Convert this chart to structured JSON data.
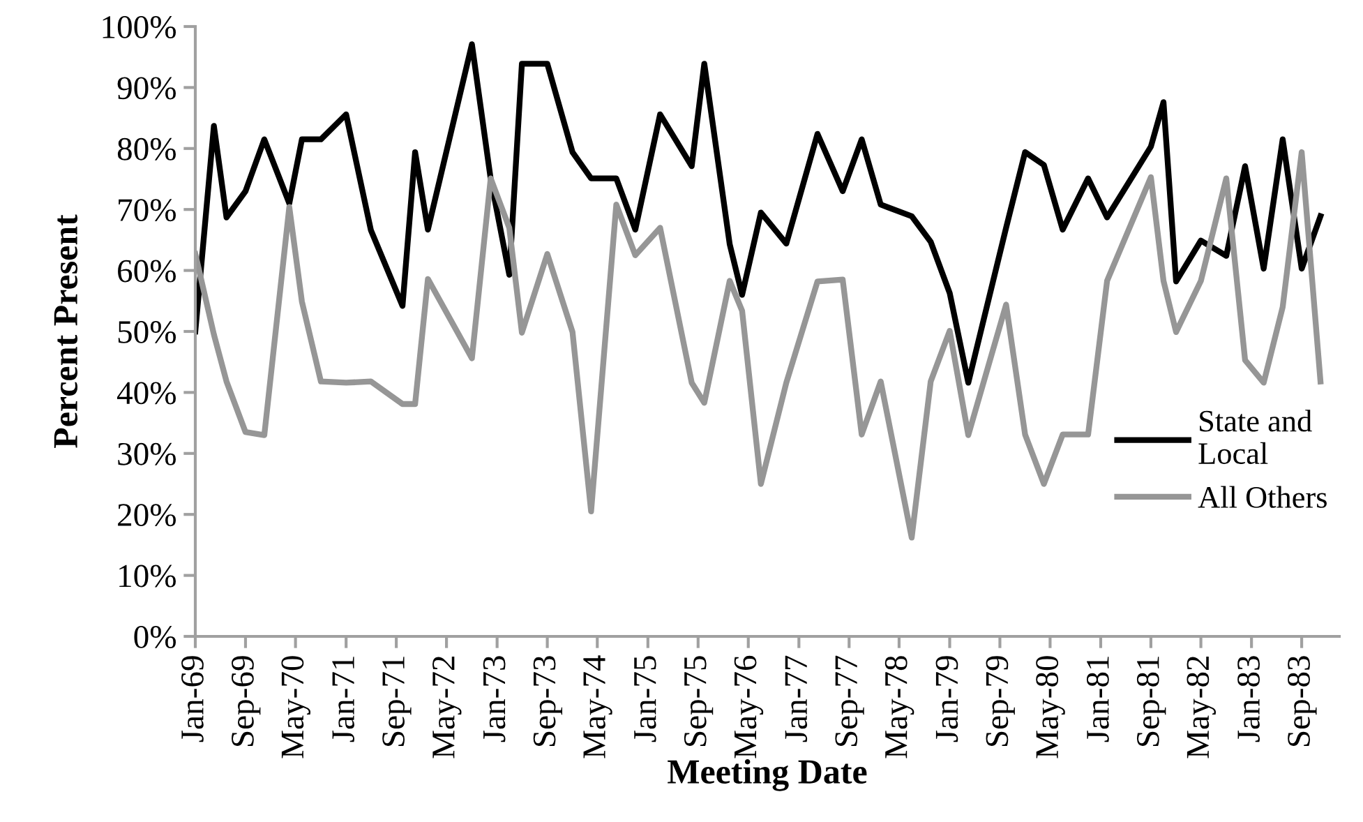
{
  "chart_data": {
    "type": "line",
    "xlabel": "Meeting Date",
    "ylabel": "Percent Present",
    "x": [
      "1969-01",
      "1969-04",
      "1969-06",
      "1969-09",
      "1969-12",
      "1970-04",
      "1970-06",
      "1970-09",
      "1971-01",
      "1971-05",
      "1971-10",
      "1971-12",
      "1972-02",
      "1972-09",
      "1972-12",
      "1973-03",
      "1973-05",
      "1973-09",
      "1974-01",
      "1974-04",
      "1974-08",
      "1974-11",
      "1975-03",
      "1975-08",
      "1975-10",
      "1976-02",
      "1976-04",
      "1976-07",
      "1976-11",
      "1977-04",
      "1977-08",
      "1977-11",
      "1978-02",
      "1978-07",
      "1978-10",
      "1979-01",
      "1979-04",
      "1979-10",
      "1980-01",
      "1980-04",
      "1980-07",
      "1980-11",
      "1981-02",
      "1981-09",
      "1981-11",
      "1982-01",
      "1982-05",
      "1982-09",
      "1982-12",
      "1983-03",
      "1983-06",
      "1983-09",
      "1983-12"
    ],
    "series": [
      {
        "name": "State and Local",
        "color": "#000000",
        "values": [
          50.0,
          83.7,
          68.7,
          73.0,
          81.5,
          71.0,
          81.5,
          81.5,
          85.6,
          66.6,
          54.2,
          79.4,
          66.7,
          97.1,
          75.0,
          59.3,
          93.9,
          93.9,
          79.4,
          75.1,
          75.1,
          66.7,
          85.6,
          77.1,
          93.9,
          64.3,
          56.0,
          69.5,
          64.4,
          82.4,
          73.0,
          81.5,
          70.8,
          68.9,
          64.7,
          56.3,
          41.6,
          67.0,
          79.4,
          77.3,
          66.7,
          75.1,
          68.7,
          80.3,
          87.6,
          58.2,
          64.9,
          62.4,
          77.1,
          60.3,
          81.5,
          60.3,
          68.9
        ]
      },
      {
        "name": "All Others",
        "color": "#969696",
        "values": [
          62.7,
          49.5,
          41.8,
          33.5,
          33.0,
          70.4,
          54.9,
          41.8,
          41.6,
          41.8,
          38.1,
          38.1,
          58.6,
          45.6,
          75.1,
          67.0,
          49.8,
          62.7,
          49.9,
          20.5,
          70.8,
          62.5,
          67.0,
          41.6,
          38.3,
          58.3,
          53.4,
          25.0,
          41.6,
          58.2,
          58.5,
          33.1,
          41.8,
          16.2,
          41.8,
          50.1,
          33.0,
          54.4,
          33.1,
          25.0,
          33.1,
          33.1,
          58.3,
          75.3,
          58.3,
          49.9,
          58.3,
          75.1,
          45.3,
          41.6,
          54.0,
          79.4,
          41.8
        ]
      }
    ],
    "xlim": [
      "1969-01",
      "1984-03"
    ],
    "xticks": [
      {
        "value": "1969-01",
        "label": "Jan-69"
      },
      {
        "value": "1969-09",
        "label": "Sep-69"
      },
      {
        "value": "1970-05",
        "label": "May-70"
      },
      {
        "value": "1971-01",
        "label": "Jan-71"
      },
      {
        "value": "1971-09",
        "label": "Sep-71"
      },
      {
        "value": "1972-05",
        "label": "May-72"
      },
      {
        "value": "1973-01",
        "label": "Jan-73"
      },
      {
        "value": "1973-09",
        "label": "Sep-73"
      },
      {
        "value": "1974-05",
        "label": "May-74"
      },
      {
        "value": "1975-01",
        "label": "Jan-75"
      },
      {
        "value": "1975-09",
        "label": "Sep-75"
      },
      {
        "value": "1976-05",
        "label": "May-76"
      },
      {
        "value": "1977-01",
        "label": "Jan-77"
      },
      {
        "value": "1977-09",
        "label": "Sep-77"
      },
      {
        "value": "1978-05",
        "label": "May-78"
      },
      {
        "value": "1979-01",
        "label": "Jan-79"
      },
      {
        "value": "1979-09",
        "label": "Sep-79"
      },
      {
        "value": "1980-05",
        "label": "May-80"
      },
      {
        "value": "1981-01",
        "label": "Jan-81"
      },
      {
        "value": "1981-09",
        "label": "Sep-81"
      },
      {
        "value": "1982-05",
        "label": "May-82"
      },
      {
        "value": "1983-01",
        "label": "Jan-83"
      },
      {
        "value": "1983-09",
        "label": "Sep-83"
      }
    ],
    "ylim": [
      0,
      100
    ],
    "yticks": [
      {
        "value": 0,
        "label": "0%"
      },
      {
        "value": 10,
        "label": "10%"
      },
      {
        "value": 20,
        "label": "20%"
      },
      {
        "value": 30,
        "label": "30%"
      },
      {
        "value": 40,
        "label": "40%"
      },
      {
        "value": 50,
        "label": "50%"
      },
      {
        "value": 60,
        "label": "60%"
      },
      {
        "value": 70,
        "label": "70%"
      },
      {
        "value": 80,
        "label": "80%"
      },
      {
        "value": 90,
        "label": "90%"
      },
      {
        "value": 100,
        "label": "100%"
      }
    ],
    "grid": false,
    "legend": "right",
    "marker": "none",
    "line_style": "solid"
  }
}
